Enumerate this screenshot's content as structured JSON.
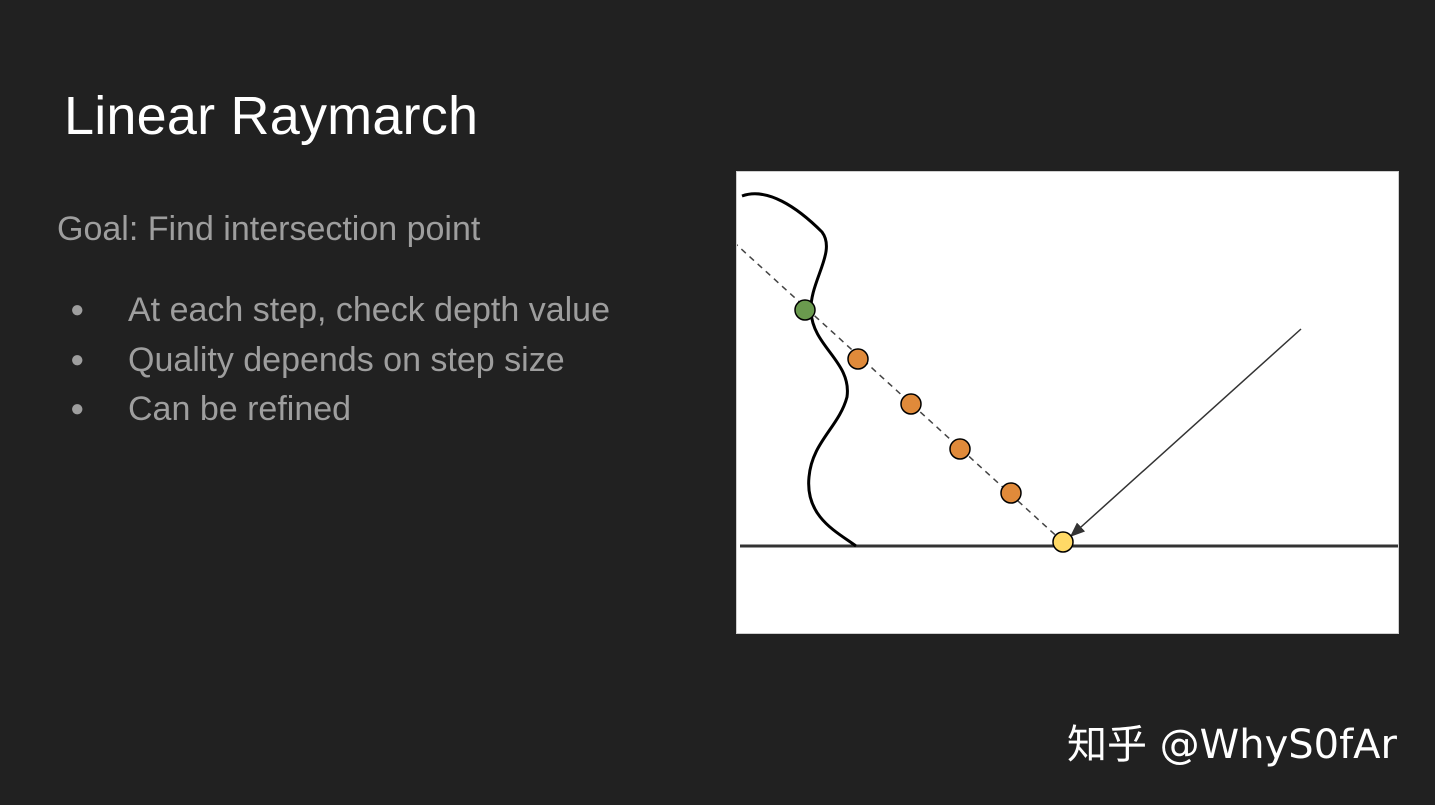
{
  "slide": {
    "title": "Linear Raymarch",
    "goal": "Goal: Find intersection point",
    "bullets": [
      "At each step, check depth value",
      "Quality depends on step size",
      "Can be refined"
    ],
    "bullet_glyph": "●"
  },
  "diagram": {
    "colors": {
      "hit_sample": "#6a9a4e",
      "step_sample": "#e08a3a",
      "origin_point": "#ffd966",
      "outline": "#000000"
    },
    "step_samples_count": 4
  },
  "watermark": "知乎 @WhyS0fAr"
}
